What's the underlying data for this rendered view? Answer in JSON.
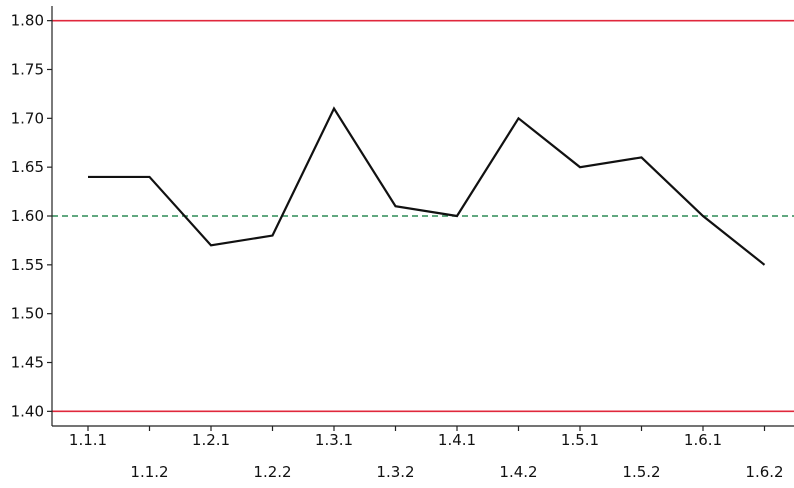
{
  "chart_data": {
    "type": "line",
    "categories": [
      "1.1.1",
      "1.1.2",
      "1.2.1",
      "1.2.2",
      "1.3.1",
      "1.3.2",
      "1.4.1",
      "1.4.2",
      "1.5.1",
      "1.5.2",
      "1.6.1",
      "1.6.2"
    ],
    "series": [
      {
        "values": [
          1.64,
          1.64,
          1.57,
          1.58,
          1.71,
          1.61,
          1.6,
          1.7,
          1.65,
          1.66,
          1.6,
          1.55
        ],
        "color": "#111111",
        "style": "solid"
      }
    ],
    "reference_lines": [
      {
        "y": 1.8,
        "color": "#e0283c",
        "style": "solid"
      },
      {
        "y": 1.6,
        "color": "#2e8b57",
        "style": "dashed"
      },
      {
        "y": 1.4,
        "color": "#e0283c",
        "style": "solid"
      }
    ],
    "y_ticks": [
      "1.40",
      "1.45",
      "1.50",
      "1.55",
      "1.60",
      "1.65",
      "1.70",
      "1.75",
      "1.80"
    ],
    "ylim": [
      1.385,
      1.815
    ],
    "title": "",
    "xlabel": "",
    "ylabel": "",
    "grid": false,
    "legend": "none"
  }
}
